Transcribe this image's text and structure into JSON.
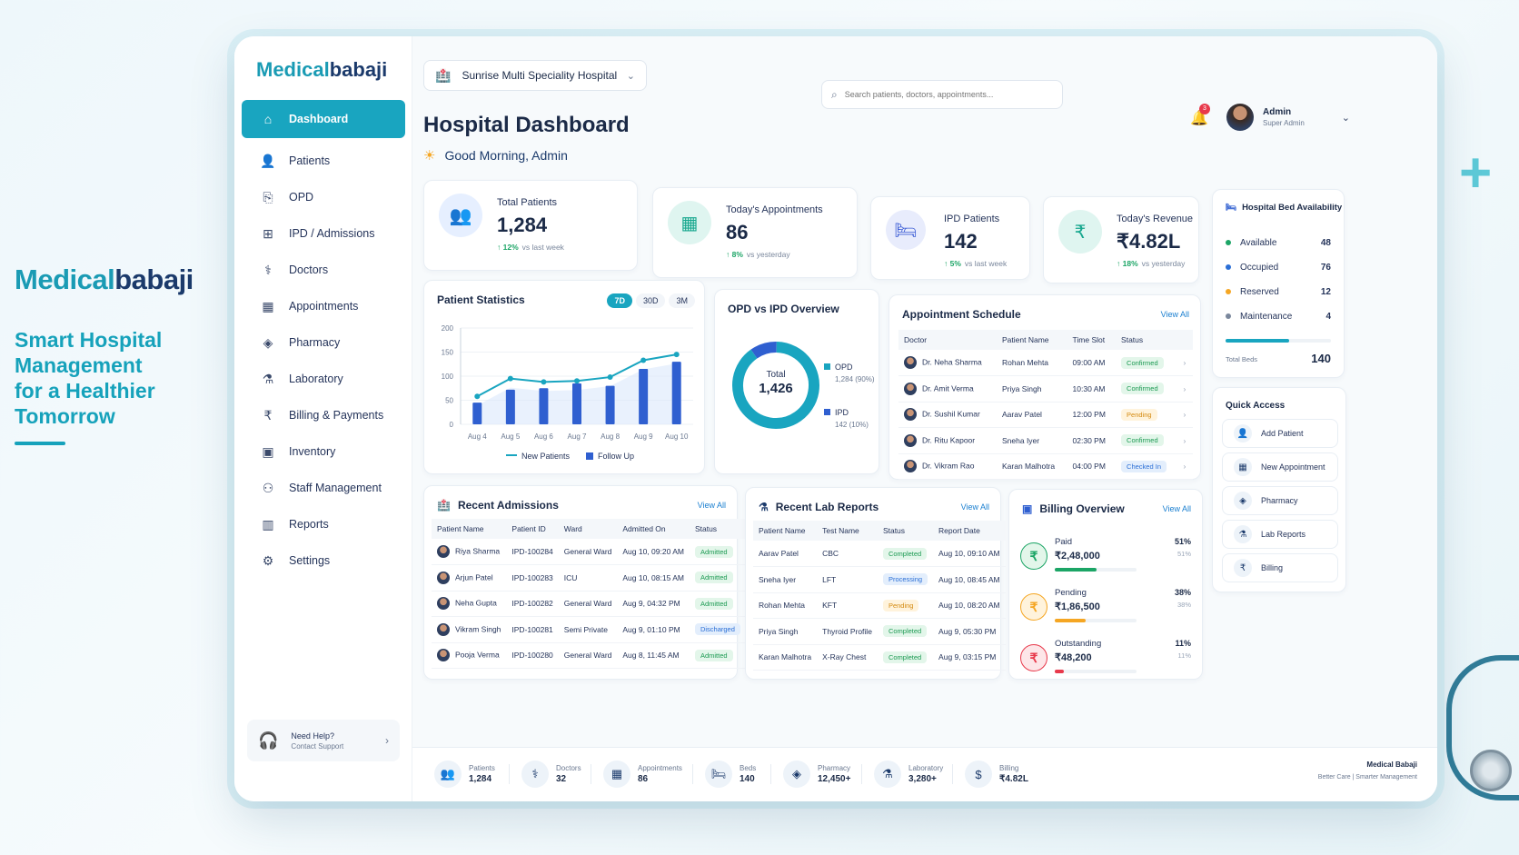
{
  "promo": {
    "brand_a": "Medical",
    "brand_b": "babaji",
    "tagline": [
      "Smart Hospital",
      "Management",
      "for a Healthier",
      "Tomorrow"
    ]
  },
  "sidebar": {
    "brand_a": "Medical",
    "brand_b": "babaji",
    "items": [
      {
        "label": "Dashboard",
        "icon": "home-icon",
        "glyph": "⌂",
        "active": true
      },
      {
        "label": "Patients",
        "icon": "user-icon",
        "glyph": "👤"
      },
      {
        "label": "OPD",
        "icon": "clipboard-icon",
        "glyph": "⎘"
      },
      {
        "label": "IPD / Admissions",
        "icon": "admission-icon",
        "glyph": "⊞"
      },
      {
        "label": "Doctors",
        "icon": "doctor-icon",
        "glyph": "⚕"
      },
      {
        "label": "Appointments",
        "icon": "calendar-icon",
        "glyph": "▦"
      },
      {
        "label": "Pharmacy",
        "icon": "pill-icon",
        "glyph": "◈"
      },
      {
        "label": "Laboratory",
        "icon": "flask-icon",
        "glyph": "⚗"
      },
      {
        "label": "Billing & Payments",
        "icon": "billing-icon",
        "glyph": "₹"
      },
      {
        "label": "Inventory",
        "icon": "box-icon",
        "glyph": "▣"
      },
      {
        "label": "Staff Management",
        "icon": "staff-icon",
        "glyph": "⚇"
      },
      {
        "label": "Reports",
        "icon": "reports-icon",
        "glyph": "▥"
      },
      {
        "label": "Settings",
        "icon": "gear-icon",
        "glyph": "⚙"
      }
    ],
    "help": {
      "title": "Need Help?",
      "subtitle": "Contact Support"
    }
  },
  "topbar": {
    "hospital": "Sunrise Multi Speciality Hospital",
    "search_placeholder": "Search patients, doctors, appointments...",
    "notifications": "3",
    "admin_name": "Admin",
    "admin_role": "Super Admin"
  },
  "header": {
    "title": "Hospital Dashboard",
    "greeting": "Good Morning, Admin"
  },
  "stats": [
    {
      "label": "Total Patients",
      "value": "1,284",
      "change": "12%",
      "period": "vs last week",
      "color": "#3a7bd5",
      "bg": "#e6efff",
      "glyph": "👥"
    },
    {
      "label": "Today's Appointments",
      "value": "86",
      "change": "8%",
      "period": "vs yesterday",
      "color": "#16a78e",
      "bg": "#dff5f0",
      "glyph": "▦"
    },
    {
      "label": "IPD Patients",
      "value": "142",
      "change": "5%",
      "period": "vs last week",
      "color": "#3a5bd5",
      "bg": "#e8ecfc",
      "glyph": "🛏"
    },
    {
      "label": "Today's Revenue",
      "value": "₹4.82L",
      "change": "18%",
      "period": "vs yesterday",
      "color": "#16a78e",
      "bg": "#dff5f0",
      "glyph": "₹"
    }
  ],
  "patient_stats": {
    "title": "Patient Statistics",
    "tabs": [
      "7D",
      "30D",
      "3M"
    ],
    "legend": [
      "New Patients",
      "Follow Up"
    ]
  },
  "chart_data": {
    "type": "bar",
    "categories": [
      "Aug 4",
      "Aug 5",
      "Aug 6",
      "Aug 7",
      "Aug 8",
      "Aug 9",
      "Aug 10"
    ],
    "ylim": [
      0,
      200
    ],
    "yticks": [
      0,
      50,
      100,
      150,
      200
    ],
    "series": [
      {
        "name": "New Patients",
        "type": "line",
        "values": [
          58,
          95,
          88,
          90,
          98,
          133,
          145
        ]
      },
      {
        "name": "Follow Up",
        "type": "bar",
        "values": [
          45,
          72,
          75,
          85,
          80,
          115,
          130
        ]
      }
    ]
  },
  "opd_ipd": {
    "title": "OPD vs IPD Overview",
    "total_label": "Total",
    "total": "1,426",
    "items": [
      {
        "name": "OPD",
        "detail": "1,284 (90%)",
        "value": 90,
        "color": "#19a5c0"
      },
      {
        "name": "IPD",
        "detail": "142 (10%)",
        "value": 10,
        "color": "#2f5fd0"
      }
    ]
  },
  "appointments": {
    "title": "Appointment Schedule",
    "view_all": "View All",
    "headers": [
      "Doctor",
      "Patient Name",
      "Time Slot",
      "Status"
    ],
    "rows": [
      {
        "doctor": "Dr. Neha Sharma",
        "patient": "Rohan Mehta",
        "time": "09:00 AM",
        "status": "Confirmed",
        "tone": "p-green"
      },
      {
        "doctor": "Dr. Amit Verma",
        "patient": "Priya Singh",
        "time": "10:30 AM",
        "status": "Confirmed",
        "tone": "p-green"
      },
      {
        "doctor": "Dr. Sushil Kumar",
        "patient": "Aarav Patel",
        "time": "12:00 PM",
        "status": "Pending",
        "tone": "p-yellow"
      },
      {
        "doctor": "Dr. Ritu Kapoor",
        "patient": "Sneha Iyer",
        "time": "02:30 PM",
        "status": "Confirmed",
        "tone": "p-green"
      },
      {
        "doctor": "Dr. Vikram Rao",
        "patient": "Karan Malhotra",
        "time": "04:00 PM",
        "status": "Checked In",
        "tone": "p-blue"
      }
    ]
  },
  "beds": {
    "title": "Hospital Bed Availability",
    "items": [
      {
        "label": "Available",
        "value": "48",
        "color": "#1ca566"
      },
      {
        "label": "Occupied",
        "value": "76",
        "color": "#2b6fd6"
      },
      {
        "label": "Reserved",
        "value": "12",
        "color": "#f5a623"
      },
      {
        "label": "Maintenance",
        "value": "4",
        "color": "#7a879c"
      }
    ],
    "occupancy": 0.6,
    "total_label": "Total Beds",
    "total": "140"
  },
  "quick_access": {
    "title": "Quick Access",
    "items": [
      {
        "label": "Add Patient",
        "icon": "add-patient-icon",
        "glyph": "👤"
      },
      {
        "label": "New Appointment",
        "icon": "calendar-icon",
        "glyph": "▦"
      },
      {
        "label": "Pharmacy",
        "icon": "pill-icon",
        "glyph": "◈"
      },
      {
        "label": "Lab Reports",
        "icon": "flask-icon",
        "glyph": "⚗"
      },
      {
        "label": "Billing",
        "icon": "billing-icon",
        "glyph": "₹"
      }
    ]
  },
  "admissions": {
    "title": "Recent Admissions",
    "view_all": "View All",
    "headers": [
      "Patient Name",
      "Patient ID",
      "Ward",
      "Admitted On",
      "Status"
    ],
    "rows": [
      {
        "name": "Riya Sharma",
        "id": "IPD-100284",
        "ward": "General Ward",
        "date": "Aug 10, 09:20 AM",
        "status": "Admitted",
        "tone": "p-green"
      },
      {
        "name": "Arjun Patel",
        "id": "IPD-100283",
        "ward": "ICU",
        "date": "Aug 10, 08:15 AM",
        "status": "Admitted",
        "tone": "p-green"
      },
      {
        "name": "Neha Gupta",
        "id": "IPD-100282",
        "ward": "General Ward",
        "date": "Aug 9, 04:32 PM",
        "status": "Admitted",
        "tone": "p-green"
      },
      {
        "name": "Vikram Singh",
        "id": "IPD-100281",
        "ward": "Semi Private",
        "date": "Aug 9, 01:10 PM",
        "status": "Discharged",
        "tone": "p-blue"
      },
      {
        "name": "Pooja Verma",
        "id": "IPD-100280",
        "ward": "General Ward",
        "date": "Aug 8, 11:45 AM",
        "status": "Admitted",
        "tone": "p-green"
      }
    ]
  },
  "lab_reports": {
    "title": "Recent Lab Reports",
    "view_all": "View All",
    "headers": [
      "Patient Name",
      "Test Name",
      "Status",
      "Report Date"
    ],
    "rows": [
      {
        "name": "Aarav Patel",
        "test": "CBC",
        "status": "Completed",
        "tone": "p-green",
        "date": "Aug 10, 09:10 AM"
      },
      {
        "name": "Sneha Iyer",
        "test": "LFT",
        "status": "Processing",
        "tone": "p-blue",
        "date": "Aug 10, 08:45 AM"
      },
      {
        "name": "Rohan Mehta",
        "test": "KFT",
        "status": "Pending",
        "tone": "p-yellow",
        "date": "Aug 10, 08:20 AM"
      },
      {
        "name": "Priya Singh",
        "test": "Thyroid Profile",
        "status": "Completed",
        "tone": "p-green",
        "date": "Aug 9, 05:30 PM"
      },
      {
        "name": "Karan Malhotra",
        "test": "X-Ray Chest",
        "status": "Completed",
        "tone": "p-green",
        "date": "Aug 9, 03:15 PM"
      }
    ]
  },
  "billing": {
    "title": "Billing Overview",
    "view_all": "View All",
    "items": [
      {
        "label": "Paid",
        "value": "₹2,48,000",
        "pct": "51%",
        "fraction": 0.51,
        "color": "#1ca566",
        "bg": "#e3f6ea",
        "glyph": "₹"
      },
      {
        "label": "Pending",
        "value": "₹1,86,500",
        "pct": "38%",
        "fraction": 0.38,
        "color": "#f5a623",
        "bg": "#fff3dc",
        "glyph": "₹"
      },
      {
        "label": "Outstanding",
        "value": "₹48,200",
        "pct": "11%",
        "fraction": 0.11,
        "color": "#e8394b",
        "bg": "#fde6e8",
        "glyph": "₹"
      }
    ]
  },
  "footer": {
    "items": [
      {
        "label": "Patients",
        "value": "1,284",
        "icon": "patients-icon",
        "glyph": "👥"
      },
      {
        "label": "Doctors",
        "value": "32",
        "icon": "doctor-icon",
        "glyph": "⚕"
      },
      {
        "label": "Appointments",
        "value": "86",
        "icon": "calendar-icon",
        "glyph": "▦"
      },
      {
        "label": "Beds",
        "value": "140",
        "icon": "bed-icon",
        "glyph": "🛏"
      },
      {
        "label": "Pharmacy",
        "value": "12,450+",
        "icon": "pill-icon",
        "glyph": "◈"
      },
      {
        "label": "Laboratory",
        "value": "3,280+",
        "icon": "flask-icon",
        "glyph": "⚗"
      },
      {
        "label": "Billing",
        "value": "₹4.82L",
        "icon": "billing-icon",
        "glyph": "$"
      }
    ],
    "brand": "Medical Babaji",
    "brand_tag": "Better Care  |  Smarter Management"
  }
}
